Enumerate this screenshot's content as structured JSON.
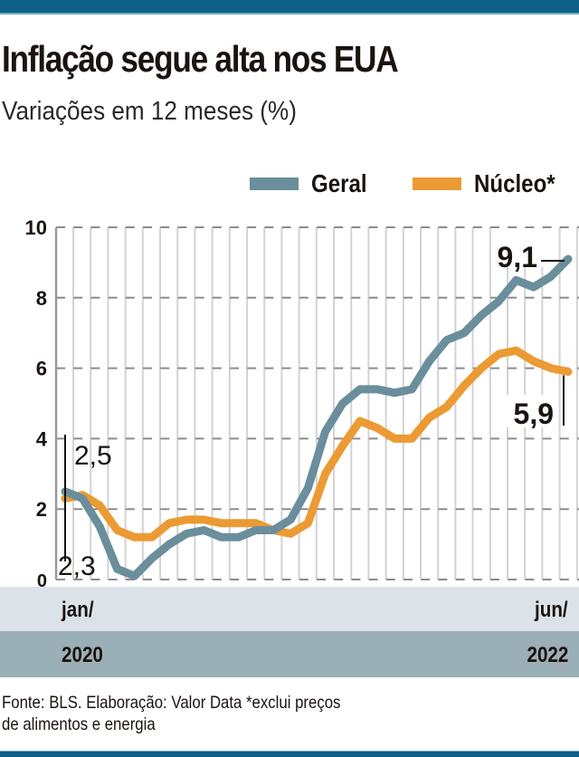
{
  "header": {
    "title": "Inflação segue alta nos EUA",
    "subtitle": "Variações em 12 meses (%)"
  },
  "colors": {
    "brand_bar": "#0d5f87",
    "geral": "#6b8e9c",
    "nucleo": "#ec9a33",
    "band_light": "#dbe3e8",
    "band_dark": "#9bafb7"
  },
  "chart_data": {
    "type": "line",
    "title": "Inflação segue alta nos EUA",
    "subtitle": "Variações em 12 meses (%)",
    "xlabel": "",
    "ylabel": "",
    "ylim": [
      0,
      10
    ],
    "yticks": [
      "0",
      "2",
      "4",
      "6",
      "8",
      "10"
    ],
    "ytick_values": [
      0,
      2,
      4,
      6,
      8,
      10
    ],
    "grid": true,
    "legend_position": "top-right",
    "x_start_label": {
      "month": "jan/",
      "year": "2020"
    },
    "x_end_label": {
      "month": "jun/",
      "year": "2022"
    },
    "x": [
      "2020-01",
      "2020-02",
      "2020-03",
      "2020-04",
      "2020-05",
      "2020-06",
      "2020-07",
      "2020-08",
      "2020-09",
      "2020-10",
      "2020-11",
      "2020-12",
      "2021-01",
      "2021-02",
      "2021-03",
      "2021-04",
      "2021-05",
      "2021-06",
      "2021-07",
      "2021-08",
      "2021-09",
      "2021-10",
      "2021-11",
      "2021-12",
      "2022-01",
      "2022-02",
      "2022-03",
      "2022-04",
      "2022-05",
      "2022-06"
    ],
    "series": [
      {
        "name": "Geral",
        "color": "#6b8e9c",
        "values": [
          2.5,
          2.3,
          1.5,
          0.3,
          0.1,
          0.6,
          1.0,
          1.3,
          1.4,
          1.2,
          1.2,
          1.4,
          1.4,
          1.7,
          2.6,
          4.2,
          5.0,
          5.4,
          5.4,
          5.3,
          5.4,
          6.2,
          6.8,
          7.0,
          7.5,
          7.9,
          8.5,
          8.3,
          8.6,
          9.1
        ]
      },
      {
        "name": "Núcleo*",
        "color": "#ec9a33",
        "values": [
          2.3,
          2.4,
          2.1,
          1.4,
          1.2,
          1.2,
          1.6,
          1.7,
          1.7,
          1.6,
          1.6,
          1.6,
          1.4,
          1.3,
          1.6,
          3.0,
          3.8,
          4.5,
          4.3,
          4.0,
          4.0,
          4.6,
          4.9,
          5.5,
          6.0,
          6.4,
          6.5,
          6.2,
          6.0,
          5.9
        ]
      }
    ],
    "annotations": [
      {
        "text": "2,5",
        "series": "Geral",
        "point": "2020-01"
      },
      {
        "text": "2,3",
        "series": "Núcleo*",
        "point": "2020-01"
      },
      {
        "text": "9,1",
        "series": "Geral",
        "point": "2022-06"
      },
      {
        "text": "5,9",
        "series": "Núcleo*",
        "point": "2022-06"
      }
    ]
  },
  "legend": {
    "items": [
      {
        "label": "Geral"
      },
      {
        "label": "Núcleo*"
      }
    ]
  },
  "footer": {
    "line1": "Fonte: BLS. Elaboração: Valor Data *exclui preços",
    "line2": "de alimentos e energia"
  }
}
